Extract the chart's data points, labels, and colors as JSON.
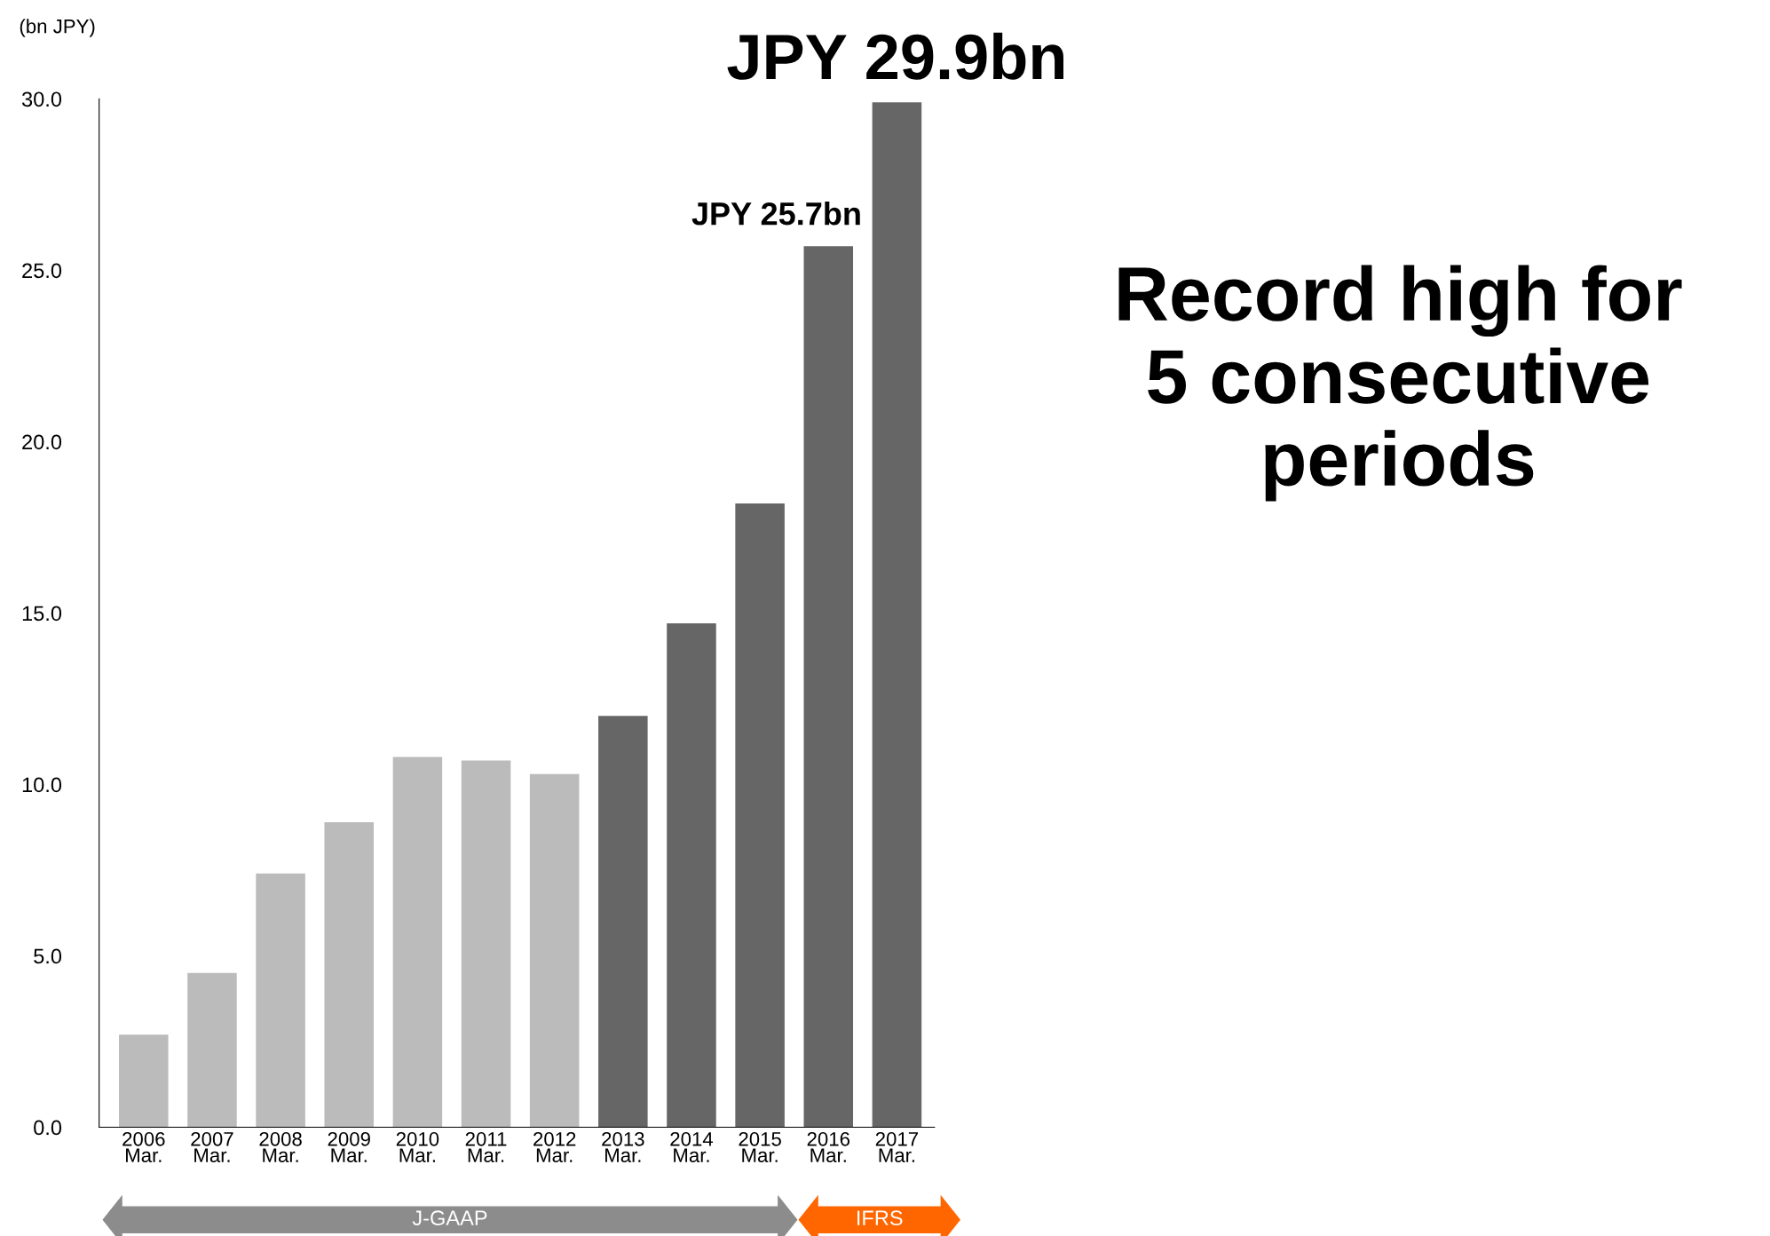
{
  "chart_data": {
    "type": "bar",
    "ylabel": "(bn JPY)",
    "categories": [
      "2006\nMar.",
      "2007\nMar.",
      "2008\nMar.",
      "2009\nMar.",
      "2010\nMar.",
      "2011\nMar.",
      "2012\nMar.",
      "2013\nMar.",
      "2014\nMar.",
      "2015\nMar.",
      "2016\nMar.",
      "2017\nMar."
    ],
    "values": [
      2.7,
      4.5,
      7.4,
      8.9,
      10.8,
      10.7,
      10.3,
      12.0,
      14.7,
      18.2,
      25.7,
      29.9
    ],
    "colors": [
      "#bbbbbb",
      "#bbbbbb",
      "#bbbbbb",
      "#bbbbbb",
      "#bbbbbb",
      "#bbbbbb",
      "#bbbbbb",
      "#666666",
      "#666666",
      "#666666",
      "#666666",
      "#666666"
    ],
    "value_labels": [
      null,
      null,
      null,
      null,
      null,
      null,
      null,
      null,
      null,
      null,
      "JPY 25.7bn",
      "JPY 29.9bn"
    ],
    "ylim": [
      0,
      30
    ],
    "yticks": [
      {
        "value": 0,
        "label": "0.0"
      },
      {
        "value": 5,
        "label": "5.0"
      },
      {
        "value": 10,
        "label": "10.0"
      },
      {
        "value": 15,
        "label": "15.0"
      },
      {
        "value": 20,
        "label": "20.0"
      },
      {
        "value": 25,
        "label": "25.0"
      },
      {
        "value": 30,
        "label": "30.0"
      }
    ],
    "annotations": [
      "Record high for\n5 consecutive\nperiods",
      "J-GAAP",
      "IFRS"
    ],
    "grid": false,
    "legend": false
  }
}
